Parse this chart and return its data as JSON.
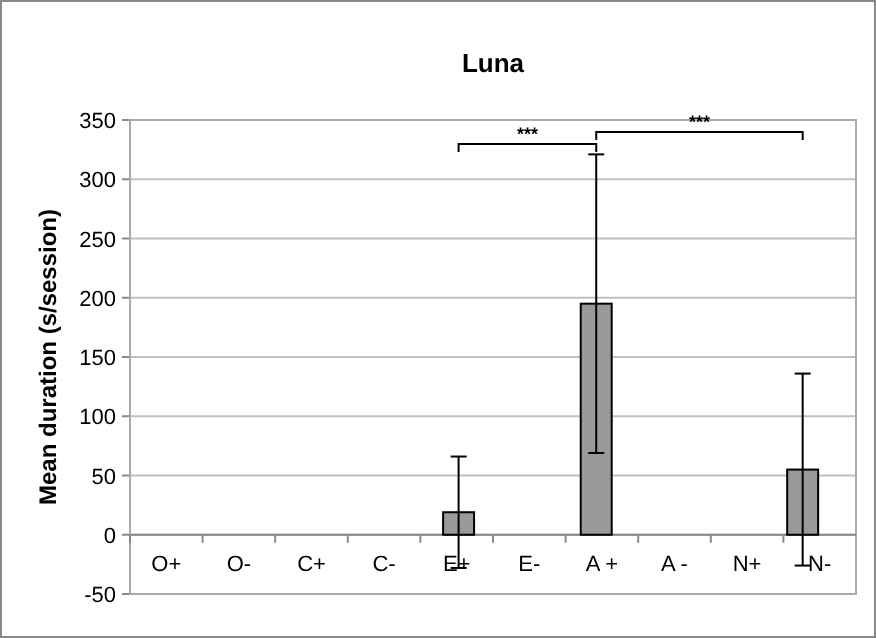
{
  "chart_data": {
    "type": "bar",
    "title": "Luna",
    "ylabel": "Mean duration (s/session)",
    "categories": [
      "O+",
      "O-",
      "C+",
      "C-",
      "E+",
      "E-",
      "A +",
      "A -",
      "N+",
      "N-"
    ],
    "values": [
      0,
      0,
      0,
      0,
      19,
      0,
      195,
      0,
      0,
      55
    ],
    "errors": [
      null,
      null,
      null,
      null,
      47,
      null,
      126,
      null,
      null,
      81
    ],
    "color": "#999999",
    "ylim": [
      -50,
      350
    ],
    "yticks": [
      -50,
      0,
      50,
      100,
      150,
      200,
      250,
      300,
      350
    ],
    "grid": "y",
    "annotations": [
      "***",
      "***"
    ]
  }
}
